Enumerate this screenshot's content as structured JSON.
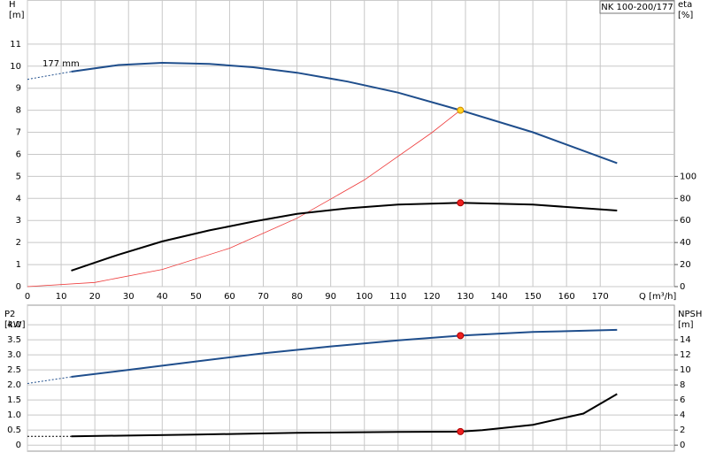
{
  "chart_data": [
    {
      "type": "line",
      "title": "NK 100-200/177",
      "annotation": "177 mm",
      "y_label": "H",
      "y_unit": "[m]",
      "y2_label": "eta",
      "y2_unit": "[%]",
      "x_label": "Q [m³/h]",
      "xlim": [
        0,
        192
      ],
      "xticks": [
        0,
        10,
        20,
        30,
        40,
        50,
        60,
        70,
        80,
        90,
        100,
        110,
        120,
        130,
        140,
        150,
        160,
        170
      ],
      "ylim": [
        0,
        13
      ],
      "yticks": [
        0,
        1,
        2,
        3,
        4,
        5,
        6,
        7,
        8,
        9,
        10,
        11
      ],
      "y2lim": [
        0,
        260
      ],
      "y2ticks": [
        0,
        20,
        40,
        60,
        80,
        100
      ],
      "grid": true,
      "series": [
        {
          "color": "#1f4e8c",
          "dash": true,
          "x": [
            0,
            13
          ],
          "values": [
            9.4,
            9.75
          ]
        },
        {
          "color": "#1f4e8c",
          "x": [
            13,
            27,
            40,
            54,
            67,
            80,
            95,
            110,
            128.5,
            150,
            175
          ],
          "values": [
            9.75,
            10.05,
            10.15,
            10.1,
            9.95,
            9.7,
            9.3,
            8.8,
            8.0,
            7.0,
            5.6
          ]
        },
        {
          "color": "#ee3b3b",
          "thin": true,
          "x": [
            0,
            20,
            40,
            60,
            80,
            100,
            120,
            128.5
          ],
          "values": [
            0,
            0.19,
            0.78,
            1.74,
            3.1,
            4.84,
            6.98,
            8.0
          ]
        },
        {
          "color": "#000000",
          "axis": "y2",
          "x": [
            13,
            27,
            40,
            54,
            67,
            80,
            95,
            110,
            128.5,
            150,
            175
          ],
          "values": [
            14.5,
            29,
            41,
            51,
            59,
            66,
            71,
            74.4,
            76,
            74.4,
            69
          ]
        },
        {
          "color": "#ffd21f",
          "marker": true,
          "x": [
            128.5
          ],
          "values": [
            8.0
          ]
        },
        {
          "color": "#ee2020",
          "marker": true,
          "axis": "y2",
          "x": [
            128.5
          ],
          "values": [
            76
          ]
        }
      ]
    },
    {
      "type": "line",
      "y_label": "P2",
      "y_unit": "[kW]",
      "y2_label": "NPSH",
      "y2_unit": "[m]",
      "xlim": [
        0,
        192
      ],
      "ylim": [
        -0.2,
        4.65
      ],
      "yticks": [
        0,
        0.5,
        {
          "value": 1.0,
          "label": "1.0"
        },
        1.5,
        {
          "value": 2.0,
          "label": "2.0"
        },
        2.5,
        {
          "value": 3.0,
          "label": "3.0"
        },
        3.5,
        {
          "value": 4.0,
          "label": "4.0"
        }
      ],
      "y2lim": [
        -0.8,
        18.6
      ],
      "y2ticks": [
        0,
        2,
        4,
        6,
        8,
        10,
        12,
        14
      ],
      "grid": true,
      "series": [
        {
          "color": "#1f4e8c",
          "dash": true,
          "x": [
            0,
            13
          ],
          "values": [
            2.05,
            2.27
          ]
        },
        {
          "color": "#1f4e8c",
          "x": [
            13,
            30,
            50,
            70,
            90,
            110,
            128.5,
            150,
            175
          ],
          "values": [
            2.27,
            2.5,
            2.78,
            3.05,
            3.28,
            3.48,
            3.64,
            3.76,
            3.83
          ]
        },
        {
          "color": "#000000",
          "dash": true,
          "axis": "y2",
          "x": [
            0,
            13
          ],
          "values": [
            1.18,
            1.18
          ]
        },
        {
          "color": "#000000",
          "axis": "y2",
          "x": [
            13,
            50,
            80,
            110,
            128.5,
            135,
            150,
            165,
            175
          ],
          "values": [
            1.18,
            1.4,
            1.65,
            1.75,
            1.8,
            2.0,
            2.7,
            4.2,
            6.8
          ]
        },
        {
          "color": "#ee2020",
          "marker": true,
          "x": [
            128.5
          ],
          "values": [
            3.64
          ]
        },
        {
          "color": "#ee2020",
          "marker": true,
          "axis": "y2",
          "x": [
            128.5
          ],
          "values": [
            1.8
          ]
        }
      ]
    }
  ]
}
